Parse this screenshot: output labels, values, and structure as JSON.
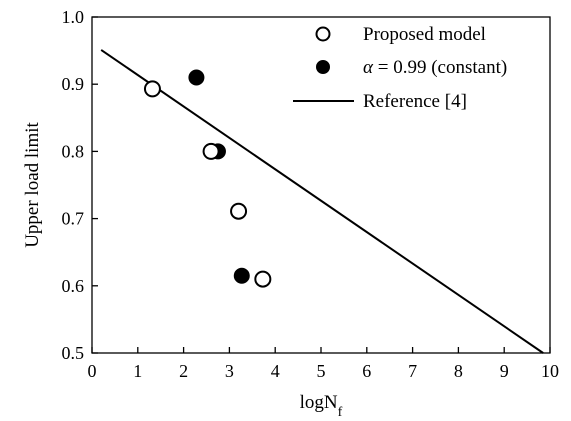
{
  "chart_data": {
    "type": "scatter",
    "title": "",
    "xlabel_main": "logN",
    "xlabel_sub": "f",
    "ylabel": "Upper load limit",
    "xlim": [
      0,
      10
    ],
    "ylim": [
      0.5,
      1.0
    ],
    "x_ticks": [
      "0",
      "1",
      "2",
      "3",
      "4",
      "5",
      "6",
      "7",
      "8",
      "9",
      "10"
    ],
    "y_ticks": [
      "0.5",
      "0.6",
      "0.7",
      "0.8",
      "0.9",
      "1.0"
    ],
    "grid": false,
    "legend_position": "top-right",
    "series": [
      {
        "name": "Proposed model",
        "marker": "open-circle",
        "color": "#000000",
        "points": [
          {
            "x": 1.32,
            "y": 0.893
          },
          {
            "x": 2.6,
            "y": 0.8
          },
          {
            "x": 3.2,
            "y": 0.711
          },
          {
            "x": 3.73,
            "y": 0.61
          }
        ]
      },
      {
        "name_symbol": "α",
        "name_rest": " = 0.99 (constant)",
        "marker": "filled-circle",
        "color": "#000000",
        "points": [
          {
            "x": 2.28,
            "y": 0.91
          },
          {
            "x": 2.75,
            "y": 0.8
          },
          {
            "x": 3.27,
            "y": 0.615
          }
        ]
      },
      {
        "name": "Reference [4]",
        "marker": "line",
        "color": "#000000",
        "points": [
          {
            "x": 0.2,
            "y": 0.951
          },
          {
            "x": 9.85,
            "y": 0.5
          }
        ]
      }
    ]
  }
}
